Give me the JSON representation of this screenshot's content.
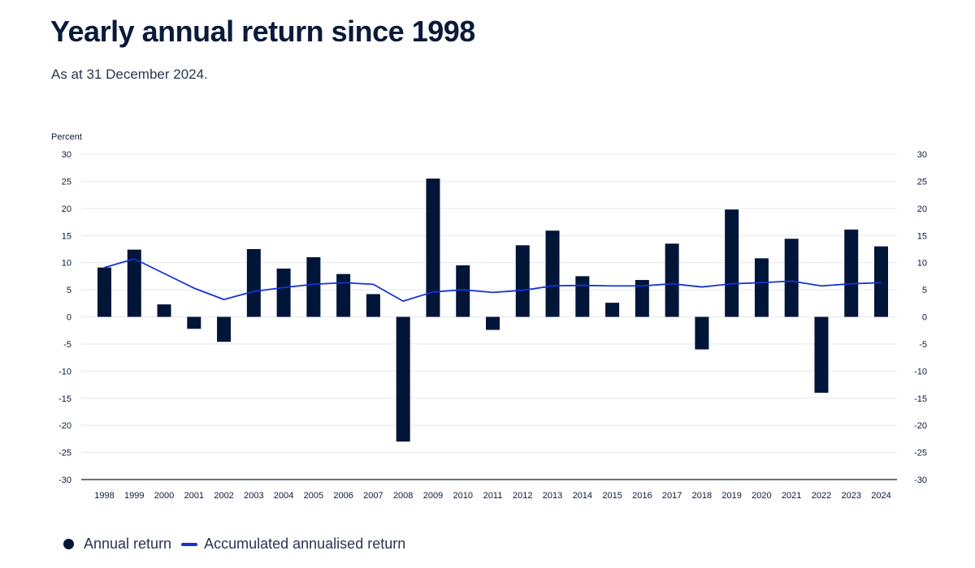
{
  "header": {
    "title": "Yearly annual return since 1998",
    "subtitle": "As at 31 December 2024."
  },
  "legend": {
    "items": [
      {
        "label": "Annual return",
        "marker": "dot",
        "color": "#001538"
      },
      {
        "label": "Accumulated annualised return",
        "marker": "line",
        "color": "#1433d6"
      }
    ]
  },
  "chart_data": {
    "type": "bar",
    "title": "",
    "ylabel": "Percent",
    "xlabel": "",
    "ylim": [
      -30,
      30
    ],
    "yticks": [
      30,
      25,
      20,
      15,
      10,
      5,
      0,
      -5,
      -10,
      -15,
      -20,
      -25,
      -30
    ],
    "dual_y_axis": true,
    "grid": true,
    "legend_position": "bottom-left",
    "categories": [
      "1998",
      "1999",
      "2000",
      "2001",
      "2002",
      "2003",
      "2004",
      "2005",
      "2006",
      "2007",
      "2008",
      "2009",
      "2010",
      "2011",
      "2012",
      "2013",
      "2014",
      "2015",
      "2016",
      "2017",
      "2018",
      "2019",
      "2020",
      "2021",
      "2022",
      "2023",
      "2024"
    ],
    "series": [
      {
        "name": "Annual return",
        "type": "bar",
        "color": "#001538",
        "values": [
          9.1,
          12.4,
          2.3,
          -2.2,
          -4.6,
          12.5,
          8.9,
          11.0,
          7.9,
          4.2,
          -23.0,
          25.5,
          9.5,
          -2.4,
          13.2,
          15.9,
          7.5,
          2.6,
          6.8,
          13.5,
          -6.0,
          19.8,
          10.8,
          14.4,
          -14.0,
          16.1,
          13.0
        ]
      },
      {
        "name": "Accumulated annualised return",
        "type": "line",
        "color": "#1433d6",
        "values": [
          9.1,
          10.7,
          8.0,
          5.3,
          3.2,
          4.7,
          5.4,
          6.0,
          6.3,
          6.0,
          2.9,
          4.6,
          5.0,
          4.5,
          4.9,
          5.7,
          5.8,
          5.7,
          5.7,
          6.1,
          5.5,
          6.1,
          6.3,
          6.6,
          5.7,
          6.1,
          6.3
        ]
      }
    ]
  }
}
